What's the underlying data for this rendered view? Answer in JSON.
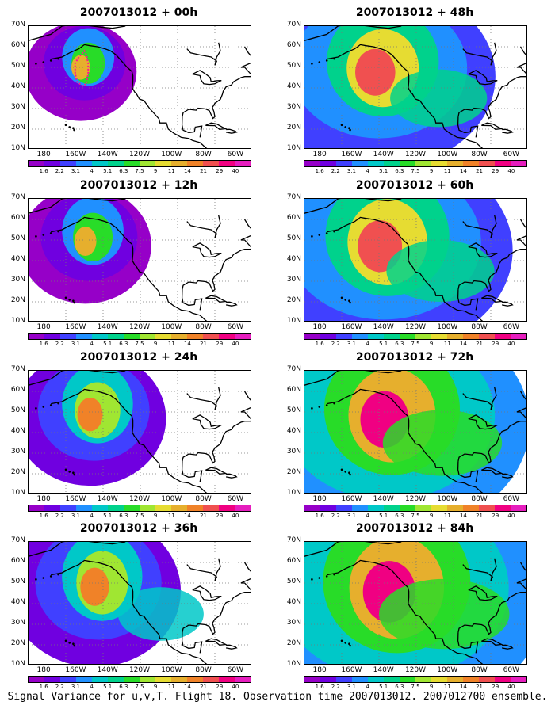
{
  "footer": "Signal Variance for u,v,T. Flight 18. Observation time 2007013012. 2007012700 ensemble.",
  "colorbar": {
    "labels": [
      "1.6",
      "2.2",
      "3.1",
      "4",
      "5.1",
      "6.3",
      "7.5",
      "9",
      "11",
      "14",
      "21",
      "29",
      "40"
    ],
    "colors": [
      "#9600c8",
      "#7000e0",
      "#4040ff",
      "#2090ff",
      "#00c8c8",
      "#00d28c",
      "#28dc28",
      "#a0e632",
      "#e6dc32",
      "#e6af2d",
      "#f08228",
      "#f05050",
      "#f00082",
      "#e61ebe"
    ]
  },
  "axes": {
    "lat_labels": [
      "70N",
      "60N",
      "50N",
      "40N",
      "30N",
      "20N",
      "10N"
    ],
    "lon_labels": [
      "180",
      "160W",
      "140W",
      "120W",
      "100W",
      "80W",
      "60W"
    ]
  },
  "panels": [
    {
      "title": "2007013012 + 00h",
      "intensity": 0
    },
    {
      "title": "2007013012 + 12h",
      "intensity": 1
    },
    {
      "title": "2007013012 + 24h",
      "intensity": 2
    },
    {
      "title": "2007013012 + 36h",
      "intensity": 3
    },
    {
      "title": "2007013012 + 48h",
      "intensity": 4
    },
    {
      "title": "2007013012 + 60h",
      "intensity": 5
    },
    {
      "title": "2007013012 + 72h",
      "intensity": 6
    },
    {
      "title": "2007013012 + 84h",
      "intensity": 7
    }
  ]
}
